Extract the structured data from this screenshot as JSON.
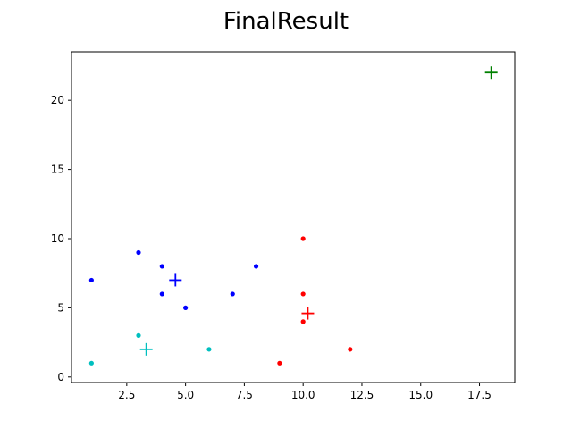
{
  "chart_data": {
    "type": "scatter",
    "title": "FinalResult",
    "xlabel": "",
    "ylabel": "",
    "xlim": [
      0.15,
      19.0
    ],
    "ylim": [
      -0.4,
      23.5
    ],
    "xticks": [
      2.5,
      5.0,
      7.5,
      10.0,
      12.5,
      15.0,
      17.5
    ],
    "xtick_labels": [
      "2.5",
      "5.0",
      "7.5",
      "10.0",
      "12.5",
      "15.0",
      "17.5"
    ],
    "yticks": [
      0,
      5,
      10,
      15,
      20
    ],
    "ytick_labels": [
      "0",
      "5",
      "10",
      "15",
      "20"
    ],
    "grid": false,
    "series": [
      {
        "color": "#0000ff",
        "points": [
          [
            1,
            7
          ],
          [
            3,
            9
          ],
          [
            4,
            8
          ],
          [
            4,
            6
          ],
          [
            5,
            5
          ],
          [
            7,
            6
          ],
          [
            8,
            8
          ]
        ],
        "centroid": [
          4.57,
          7.0
        ]
      },
      {
        "color": "#ff0000",
        "points": [
          [
            10,
            10
          ],
          [
            10,
            6
          ],
          [
            10,
            4
          ],
          [
            9,
            1
          ],
          [
            12,
            2
          ]
        ],
        "centroid": [
          10.2,
          4.6
        ]
      },
      {
        "color": "#00bfbf",
        "points": [
          [
            1,
            1
          ],
          [
            3,
            3
          ],
          [
            6,
            2
          ]
        ],
        "centroid": [
          3.33,
          2.0
        ]
      },
      {
        "color": "#008000",
        "points": [],
        "centroid": [
          18,
          22
        ]
      }
    ]
  }
}
